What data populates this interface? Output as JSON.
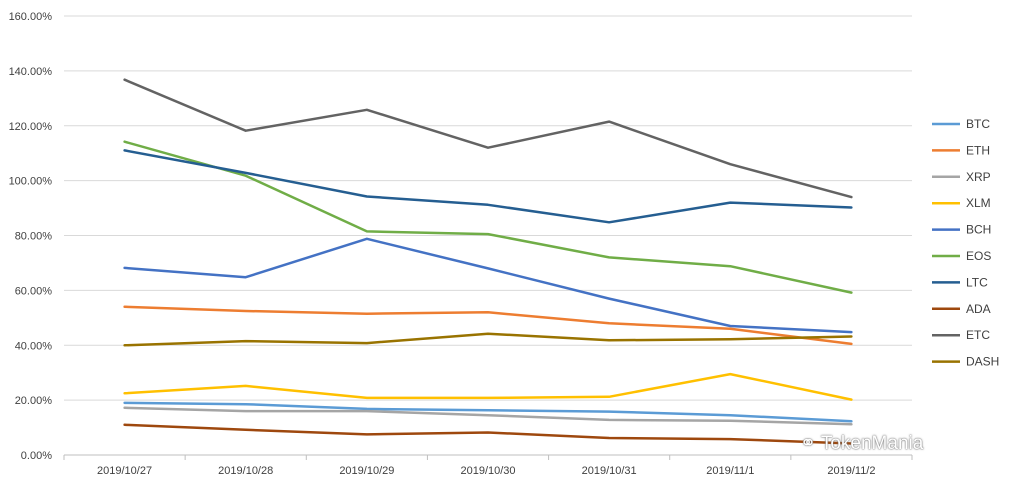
{
  "chart_data": {
    "type": "line",
    "title": "",
    "xlabel": "",
    "ylabel": "",
    "categories": [
      "2019/10/27",
      "2019/10/28",
      "2019/10/29",
      "2019/10/30",
      "2019/10/31",
      "2019/11/1",
      "2019/11/2"
    ],
    "y_ticks": [
      "0.00%",
      "20.00%",
      "40.00%",
      "60.00%",
      "80.00%",
      "100.00%",
      "120.00%",
      "140.00%",
      "160.00%"
    ],
    "ylim": [
      0,
      160
    ],
    "grid": true,
    "legend_position": "right",
    "series": [
      {
        "name": "BTC",
        "color": "#5b9bd5",
        "values": [
          19.0,
          18.5,
          16.8,
          16.3,
          15.8,
          14.5,
          12.3
        ]
      },
      {
        "name": "ETH",
        "color": "#ed7d31",
        "values": [
          54.0,
          52.5,
          51.5,
          52.0,
          48.0,
          46.0,
          40.5
        ]
      },
      {
        "name": "XRP",
        "color": "#a5a5a5",
        "values": [
          17.2,
          16.0,
          16.0,
          14.5,
          12.8,
          12.5,
          11.2
        ]
      },
      {
        "name": "XLM",
        "color": "#ffc000",
        "values": [
          22.5,
          25.2,
          20.8,
          20.8,
          21.2,
          29.5,
          20.2
        ]
      },
      {
        "name": "BCH",
        "color": "#4472c4",
        "values": [
          68.2,
          64.8,
          78.8,
          68.0,
          57.0,
          47.0,
          44.8
        ]
      },
      {
        "name": "EOS",
        "color": "#70ad47",
        "values": [
          114.2,
          101.8,
          81.5,
          80.5,
          72.0,
          68.8,
          59.2
        ]
      },
      {
        "name": "LTC",
        "color": "#255e91",
        "values": [
          111.0,
          102.8,
          94.2,
          91.2,
          84.8,
          92.0,
          90.2
        ]
      },
      {
        "name": "ADA",
        "color": "#9e480e",
        "values": [
          11.0,
          9.2,
          7.5,
          8.2,
          6.2,
          5.8,
          4.2
        ]
      },
      {
        "name": "ETC",
        "color": "#636363",
        "values": [
          136.8,
          118.2,
          125.8,
          112.0,
          121.5,
          106.0,
          94.0
        ]
      },
      {
        "name": "DASH",
        "color": "#997300",
        "values": [
          40.0,
          41.5,
          40.8,
          44.2,
          41.8,
          42.2,
          43.2
        ]
      }
    ]
  },
  "watermark": {
    "icon": "wechat-icon",
    "text": "TokenMania"
  }
}
